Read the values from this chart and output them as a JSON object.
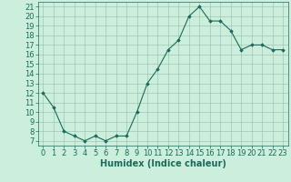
{
  "x": [
    0,
    1,
    2,
    3,
    4,
    5,
    6,
    7,
    8,
    9,
    10,
    11,
    12,
    13,
    14,
    15,
    16,
    17,
    18,
    19,
    20,
    21,
    22,
    23
  ],
  "y": [
    12,
    10.5,
    8,
    7.5,
    7,
    7.5,
    7,
    7.5,
    7.5,
    10,
    13,
    14.5,
    16.5,
    17.5,
    20,
    21,
    19.5,
    19.5,
    18.5,
    16.5,
    17,
    17,
    16.5,
    16.5
  ],
  "line_color": "#1a6b5a",
  "marker_color": "#1a6b5a",
  "bg_color": "#cceedd",
  "grid_color": "#99bbaa",
  "xlabel": "Humidex (Indice chaleur)",
  "xlabel_color": "#1a6b5a",
  "xlabel_fontsize": 7,
  "tick_fontsize": 6,
  "ylim": [
    6.5,
    21.5
  ],
  "xlim": [
    -0.5,
    23.5
  ],
  "yticks": [
    7,
    8,
    9,
    10,
    11,
    12,
    13,
    14,
    15,
    16,
    17,
    18,
    19,
    20,
    21
  ],
  "xticks": [
    0,
    1,
    2,
    3,
    4,
    5,
    6,
    7,
    8,
    9,
    10,
    11,
    12,
    13,
    14,
    15,
    16,
    17,
    18,
    19,
    20,
    21,
    22,
    23
  ]
}
